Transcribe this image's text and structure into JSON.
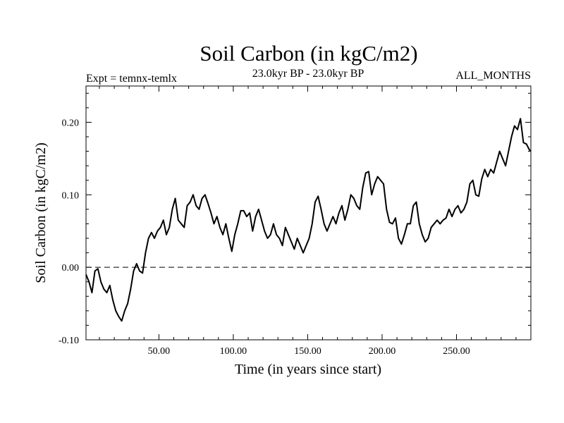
{
  "chart_data": {
    "type": "line",
    "title": "Soil Carbon (in kgC/m2)",
    "subtitle_left": "Expt = temnx-temlx",
    "subtitle_center": "23.0kyr BP - 23.0kyr BP",
    "subtitle_right": "ALL_MONTHS",
    "xlabel": "Time (in years since start)",
    "ylabel": "Soil Carbon (in kgC/m2)",
    "xlim": [
      1,
      300
    ],
    "ylim": [
      -0.1,
      0.25
    ],
    "xticks": [
      50,
      100,
      150,
      200,
      250
    ],
    "xtick_labels": [
      "50.00",
      "100.00",
      "150.00",
      "200.00",
      "250.00"
    ],
    "yticks": [
      -0.1,
      0.0,
      0.1,
      0.2
    ],
    "ytick_labels": [
      "-0.10",
      "0.00",
      "0.10",
      "0.20"
    ],
    "reference_line": 0.0,
    "series": [
      {
        "name": "Soil Carbon",
        "color": "#000000",
        "x": [
          1,
          3,
          5,
          7,
          9,
          11,
          13,
          15,
          17,
          19,
          21,
          23,
          25,
          27,
          29,
          31,
          33,
          35,
          37,
          39,
          41,
          43,
          45,
          47,
          49,
          51,
          53,
          55,
          57,
          59,
          61,
          63,
          65,
          67,
          69,
          71,
          73,
          75,
          77,
          79,
          81,
          83,
          85,
          87,
          89,
          91,
          93,
          95,
          97,
          99,
          101,
          103,
          105,
          107,
          109,
          111,
          113,
          115,
          117,
          119,
          121,
          123,
          125,
          127,
          129,
          131,
          133,
          135,
          137,
          139,
          141,
          143,
          145,
          147,
          149,
          151,
          153,
          155,
          157,
          159,
          161,
          163,
          165,
          167,
          169,
          171,
          173,
          175,
          177,
          179,
          181,
          183,
          185,
          187,
          189,
          191,
          193,
          195,
          197,
          199,
          201,
          203,
          205,
          207,
          209,
          211,
          213,
          215,
          217,
          219,
          221,
          223,
          225,
          227,
          229,
          231,
          233,
          235,
          237,
          239,
          241,
          243,
          245,
          247,
          249,
          251,
          253,
          255,
          257,
          259,
          261,
          263,
          265,
          267,
          269,
          271,
          273,
          275,
          277,
          279,
          281,
          283,
          285,
          287,
          289,
          291,
          293,
          295,
          297,
          299,
          300
        ],
        "values": [
          -0.01,
          -0.02,
          -0.035,
          -0.005,
          -0.002,
          -0.02,
          -0.03,
          -0.035,
          -0.025,
          -0.045,
          -0.06,
          -0.068,
          -0.074,
          -0.06,
          -0.05,
          -0.03,
          -0.005,
          0.005,
          -0.005,
          -0.008,
          0.02,
          0.04,
          0.048,
          0.04,
          0.05,
          0.055,
          0.065,
          0.045,
          0.055,
          0.08,
          0.095,
          0.065,
          0.06,
          0.055,
          0.085,
          0.09,
          0.1,
          0.085,
          0.08,
          0.095,
          0.1,
          0.088,
          0.075,
          0.06,
          0.07,
          0.055,
          0.045,
          0.06,
          0.04,
          0.022,
          0.045,
          0.06,
          0.078,
          0.078,
          0.07,
          0.075,
          0.05,
          0.07,
          0.08,
          0.065,
          0.05,
          0.04,
          0.045,
          0.06,
          0.045,
          0.04,
          0.03,
          0.055,
          0.045,
          0.035,
          0.025,
          0.04,
          0.03,
          0.02,
          0.03,
          0.04,
          0.06,
          0.09,
          0.098,
          0.08,
          0.06,
          0.05,
          0.06,
          0.07,
          0.06,
          0.075,
          0.085,
          0.065,
          0.08,
          0.1,
          0.095,
          0.085,
          0.08,
          0.11,
          0.13,
          0.132,
          0.1,
          0.115,
          0.125,
          0.12,
          0.115,
          0.08,
          0.062,
          0.06,
          0.068,
          0.04,
          0.032,
          0.045,
          0.06,
          0.06,
          0.085,
          0.09,
          0.06,
          0.045,
          0.035,
          0.04,
          0.055,
          0.06,
          0.065,
          0.06,
          0.065,
          0.068,
          0.08,
          0.07,
          0.08,
          0.085,
          0.075,
          0.08,
          0.09,
          0.115,
          0.12,
          0.1,
          0.098,
          0.122,
          0.135,
          0.125,
          0.135,
          0.13,
          0.145,
          0.16,
          0.15,
          0.14,
          0.16,
          0.18,
          0.195,
          0.19,
          0.205,
          0.172,
          0.17,
          0.162,
          0.16
        ]
      }
    ]
  }
}
